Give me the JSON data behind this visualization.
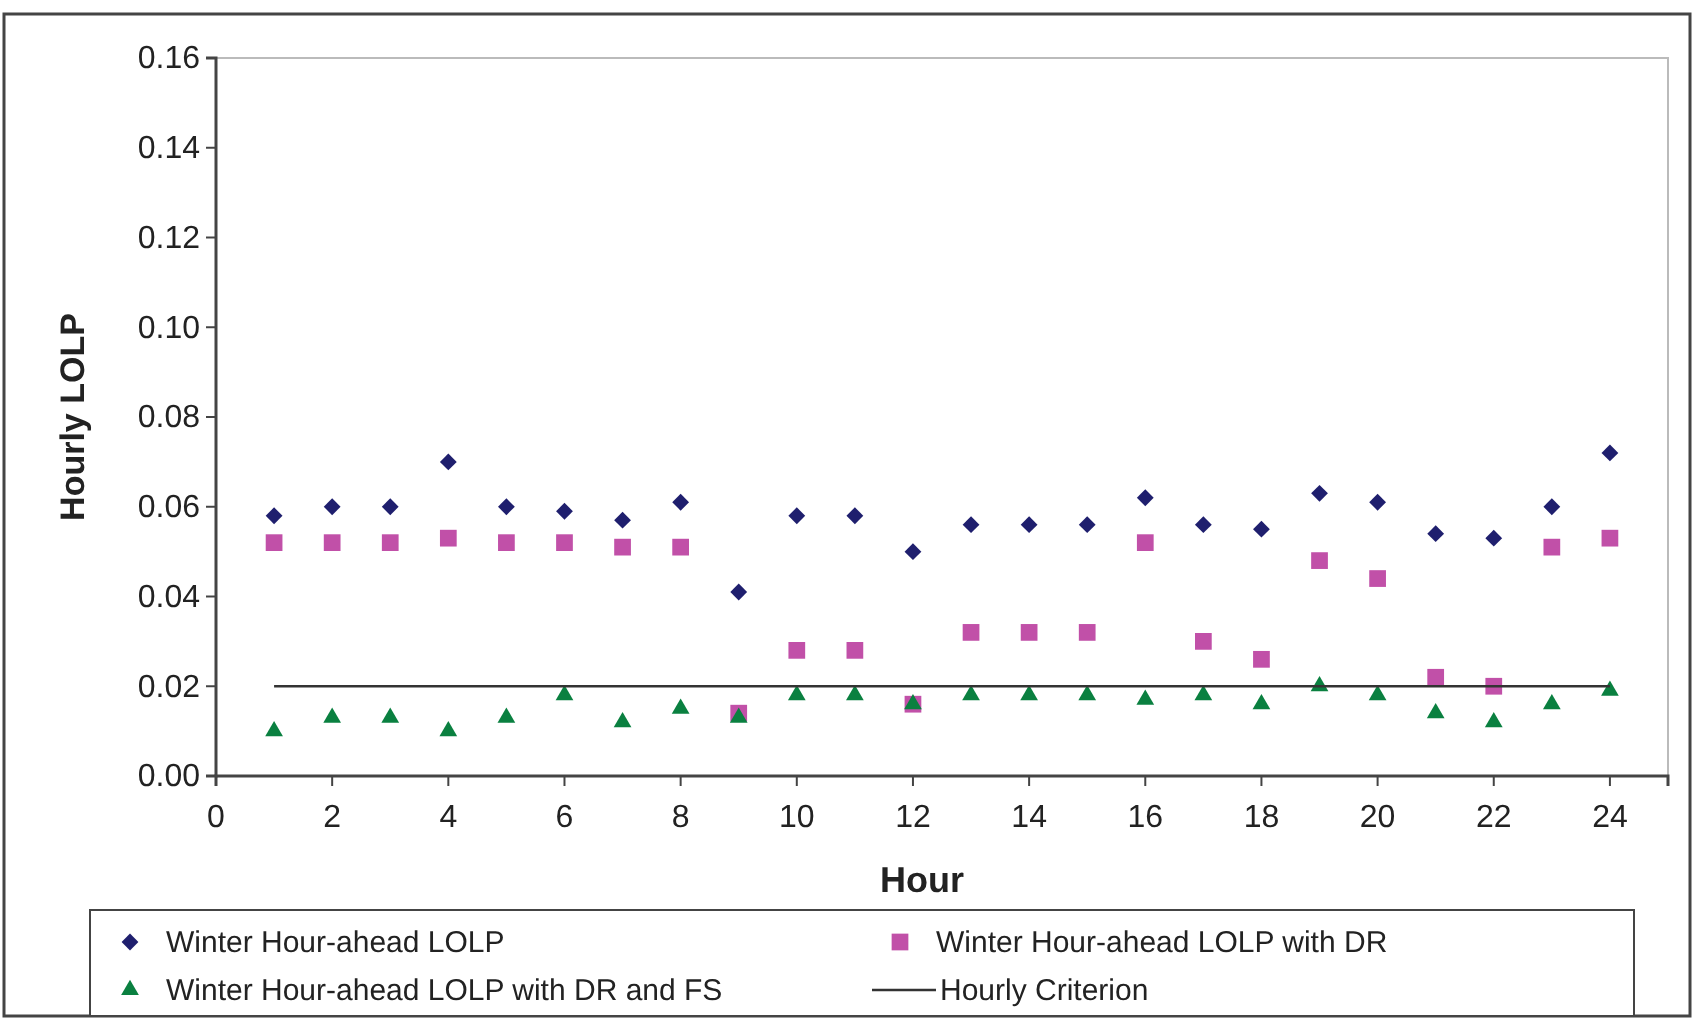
{
  "chart_data": {
    "type": "scatter",
    "xlabel": "Hour",
    "ylabel": "Hourly LOLP",
    "x": [
      1,
      2,
      3,
      4,
      5,
      6,
      7,
      8,
      9,
      10,
      11,
      12,
      13,
      14,
      15,
      16,
      17,
      18,
      19,
      20,
      21,
      22,
      23,
      24
    ],
    "xlim": [
      0,
      25
    ],
    "xticks": [
      0,
      2,
      4,
      6,
      8,
      10,
      12,
      14,
      16,
      18,
      20,
      22,
      24
    ],
    "ylim": [
      0,
      0.16
    ],
    "yticks": [
      {
        "value": 0,
        "label": "0.00"
      },
      {
        "value": 0.02,
        "label": "0.02"
      },
      {
        "value": 0.04,
        "label": "0.04"
      },
      {
        "value": 0.06,
        "label": "0.06"
      },
      {
        "value": 0.08,
        "label": "0.08"
      },
      {
        "value": 0.1,
        "label": "0.10"
      },
      {
        "value": 0.12,
        "label": "0.12"
      },
      {
        "value": 0.14,
        "label": "0.14"
      },
      {
        "value": 0.16,
        "label": "0.16"
      }
    ],
    "grid": false,
    "legend": "bottom",
    "series": [
      {
        "name": "Winter Hour-ahead LOLP",
        "color": "#1f1f6e",
        "marker": "diamond",
        "values": [
          0.058,
          0.06,
          0.06,
          0.07,
          0.06,
          0.059,
          0.057,
          0.061,
          0.041,
          0.058,
          0.058,
          0.05,
          0.056,
          0.056,
          0.056,
          0.062,
          0.056,
          0.055,
          0.063,
          0.061,
          0.054,
          0.053,
          0.06,
          0.072
        ]
      },
      {
        "name": "Winter Hour-ahead LOLP with DR",
        "color": "#c150a8",
        "marker": "square",
        "values": [
          0.052,
          0.052,
          0.052,
          0.053,
          0.052,
          0.052,
          0.051,
          0.051,
          0.014,
          0.028,
          0.028,
          0.016,
          0.032,
          0.032,
          0.032,
          0.052,
          0.03,
          0.026,
          0.048,
          0.044,
          0.022,
          0.02,
          0.051,
          0.053
        ]
      },
      {
        "name": "Winter Hour-ahead LOLP with DR and FS",
        "color": "#0a8040",
        "marker": "triangle",
        "values": [
          0.01,
          0.013,
          0.013,
          0.01,
          0.013,
          0.018,
          0.012,
          0.015,
          0.013,
          0.018,
          0.018,
          0.016,
          0.018,
          0.018,
          0.018,
          0.017,
          0.018,
          0.016,
          0.02,
          0.018,
          0.014,
          0.012,
          0.016,
          0.019
        ]
      },
      {
        "name": "Hourly Criterion",
        "type": "line",
        "color": "#333333",
        "marker": "none",
        "line_style": "solid",
        "x": [
          1,
          24
        ],
        "values": [
          0.02,
          0.02
        ]
      }
    ]
  }
}
